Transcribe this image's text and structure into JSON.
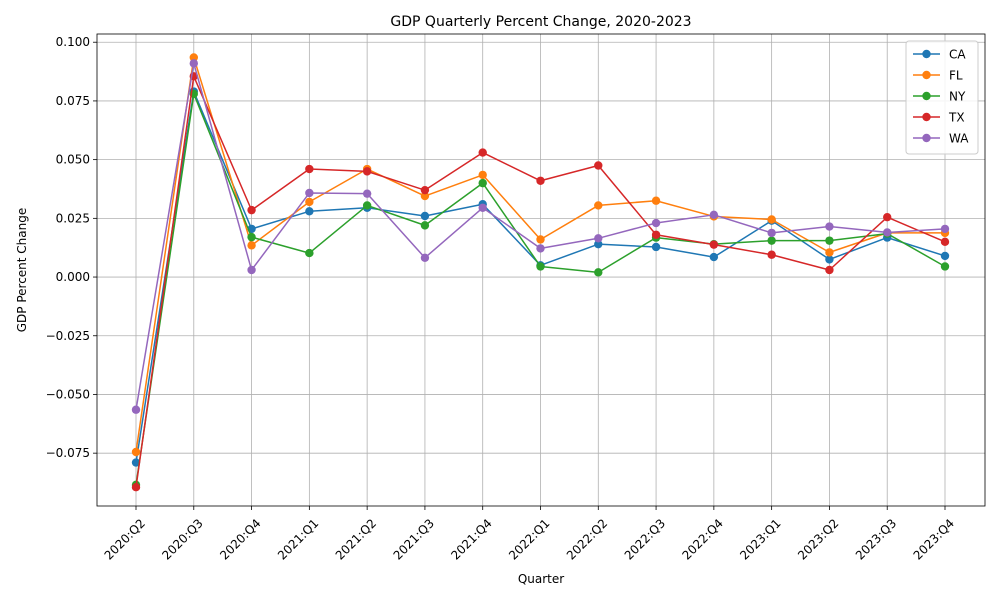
{
  "chart_data": {
    "type": "line",
    "title": "GDP Quarterly Percent Change, 2020-2023",
    "xlabel": "Quarter",
    "ylabel": "GDP Percent Change",
    "categories": [
      "2020:Q2",
      "2020:Q3",
      "2020:Q4",
      "2021:Q1",
      "2021:Q2",
      "2021:Q3",
      "2021:Q4",
      "2022:Q1",
      "2022:Q2",
      "2022:Q3",
      "2022:Q4",
      "2023:Q1",
      "2023:Q2",
      "2023:Q3",
      "2023:Q4"
    ],
    "ylim": [
      -0.0975,
      0.1035
    ],
    "yticks": [
      -0.075,
      -0.05,
      -0.025,
      0.0,
      0.025,
      0.05,
      0.075,
      0.1
    ],
    "ytick_labels": [
      "−0.075",
      "−0.050",
      "−0.025",
      "0.000",
      "0.025",
      "0.050",
      "0.075",
      "0.100"
    ],
    "grid": true,
    "legend_position": "top-right",
    "series": [
      {
        "name": "CA",
        "color": "#1f77b4",
        "values": [
          -0.079,
          0.079,
          0.0205,
          0.028,
          0.0295,
          0.026,
          0.031,
          0.005,
          0.014,
          0.0128,
          0.0085,
          0.024,
          0.0075,
          0.0168,
          0.009
        ]
      },
      {
        "name": "FL",
        "color": "#ff7f0e",
        "values": [
          -0.0745,
          0.0935,
          0.0135,
          0.032,
          0.046,
          0.0345,
          0.0435,
          0.016,
          0.0305,
          0.0325,
          0.0258,
          0.0245,
          0.0105,
          0.0188,
          0.0188
        ]
      },
      {
        "name": "NY",
        "color": "#2ca02c",
        "values": [
          -0.0885,
          0.078,
          0.017,
          0.0102,
          0.0305,
          0.022,
          0.04,
          0.0045,
          0.002,
          0.0168,
          0.014,
          0.0155,
          0.0155,
          0.0185,
          0.0045
        ]
      },
      {
        "name": "TX",
        "color": "#d62728",
        "values": [
          -0.0895,
          0.0855,
          0.0285,
          0.046,
          0.045,
          0.037,
          0.053,
          0.041,
          0.0475,
          0.018,
          0.0138,
          0.0095,
          0.003,
          0.0255,
          0.015
        ]
      },
      {
        "name": "WA",
        "color": "#9467bd",
        "values": [
          -0.0565,
          0.091,
          0.003,
          0.0358,
          0.0355,
          0.0082,
          0.0295,
          0.0122,
          0.0165,
          0.023,
          0.0265,
          0.0188,
          0.0215,
          0.019,
          0.0205
        ]
      }
    ]
  }
}
